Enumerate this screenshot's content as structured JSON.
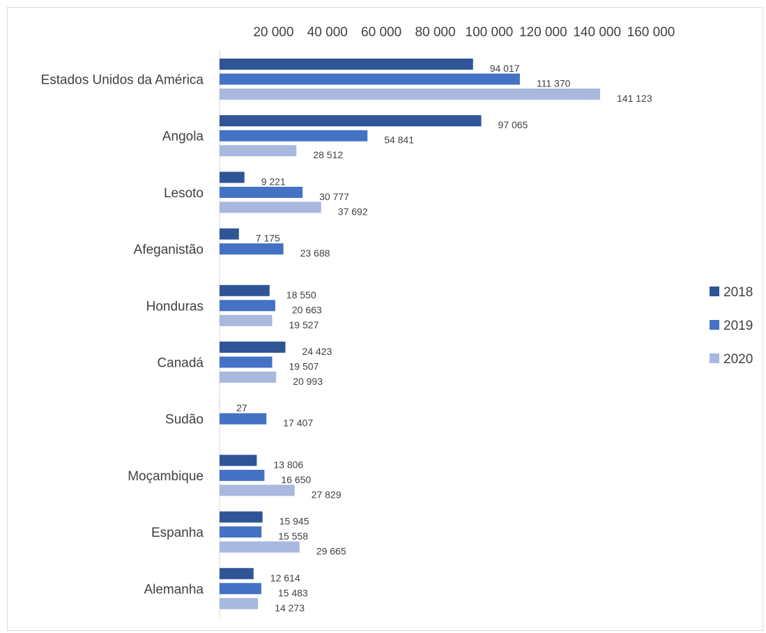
{
  "chart_data": {
    "type": "bar",
    "orientation": "horizontal",
    "title": "",
    "xlabel": "",
    "ylabel": "",
    "xlim": [
      0,
      160000
    ],
    "x_ticks": [
      20000,
      40000,
      60000,
      80000,
      100000,
      120000,
      140000,
      160000
    ],
    "x_tick_labels": [
      "20 000",
      "40 000",
      "60 000",
      "80 000",
      "100 000",
      "120 000",
      "140 000",
      "160 000"
    ],
    "x_axis_position": "top",
    "grid": false,
    "legend_position": "right",
    "categories": [
      "Estados Unidos da América",
      "Angola",
      "Lesoto",
      "Afeganistão",
      "Honduras",
      "Canadá",
      "Sudão",
      "Moçambique",
      "Espanha",
      "Alemanha"
    ],
    "series": [
      {
        "name": "2018",
        "color": "#2F5597",
        "values": [
          94017,
          97065,
          9221,
          7175,
          18550,
          24423,
          27,
          13806,
          15945,
          12614
        ],
        "labels": [
          "94 017",
          "97 065",
          "9 221",
          "7 175",
          "18 550",
          "24 423",
          "27",
          "13 806",
          "15 945",
          "12 614"
        ]
      },
      {
        "name": "2019",
        "color": "#4472C4",
        "values": [
          111370,
          54841,
          30777,
          23688,
          20663,
          19507,
          17407,
          16650,
          15558,
          15483
        ],
        "labels": [
          "111 370",
          "54 841",
          "30 777",
          "23 688",
          "20 663",
          "19 507",
          "17 407",
          "16 650",
          "15 558",
          "15 483"
        ]
      },
      {
        "name": "2020",
        "color": "#A9B8DE",
        "values": [
          141123,
          28512,
          37692,
          null,
          19527,
          20993,
          null,
          27829,
          29665,
          14273
        ],
        "labels": [
          "141 123",
          "28 512",
          "37 692",
          "",
          "19 527",
          "20 993",
          "",
          "27 829",
          "29 665",
          "14 273"
        ]
      }
    ]
  }
}
